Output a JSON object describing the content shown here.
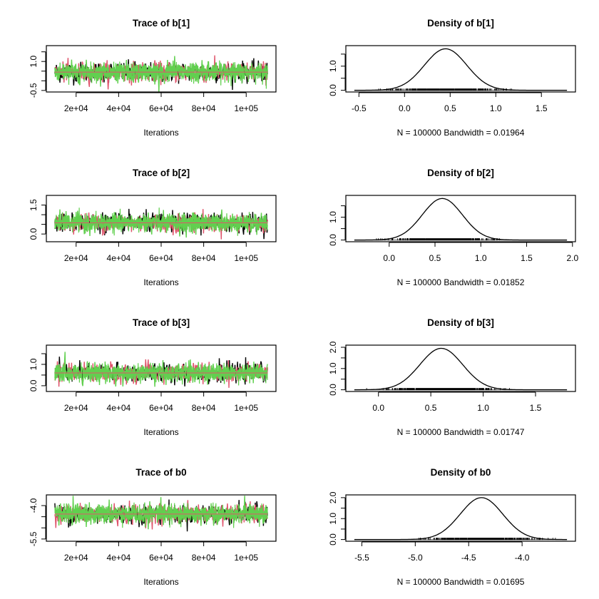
{
  "chain_colors": [
    "#000000",
    "#DF536B",
    "#61D04F"
  ],
  "chart_data": [
    {
      "type": "line",
      "kind": "trace",
      "title": "Trace of b[1]",
      "xlabel": "Iterations",
      "iterations": [
        10001,
        110000
      ],
      "ylim": [
        -0.58,
        1.82
      ],
      "mean": 0.45,
      "sd": 0.23,
      "xticks": [
        20000,
        40000,
        60000,
        80000,
        100000
      ],
      "xtick_labels": [
        "2e+04",
        "4e+04",
        "6e+04",
        "8e+04",
        "1e+05"
      ],
      "yticks": [
        -0.5,
        0,
        0.5,
        1,
        1.5
      ],
      "ytick_labels": [
        "-0.5",
        "",
        "",
        "1.0",
        ""
      ]
    },
    {
      "type": "line",
      "kind": "density",
      "title": "Density of b[1]",
      "xlabel": "N = 100000   Bandwidth = 0.01964",
      "xlim": [
        -0.55,
        1.78
      ],
      "ylim": [
        0,
        1.78
      ],
      "mode": 0.45,
      "peak": 1.72,
      "xticks": [
        -0.5,
        0,
        0.5,
        1,
        1.5
      ],
      "xtick_labels": [
        "-0.5",
        "0.0",
        "0.5",
        "1.0",
        "1.5"
      ],
      "yticks": [
        0,
        0.5,
        1,
        1.5
      ],
      "ytick_labels": [
        "0.0",
        "",
        "1.0",
        ""
      ]
    },
    {
      "type": "line",
      "kind": "trace",
      "title": "Trace of b[2]",
      "xlabel": "Iterations",
      "iterations": [
        10001,
        110000
      ],
      "ylim": [
        -0.4,
        2.0
      ],
      "mean": 0.58,
      "sd": 0.22,
      "xticks": [
        20000,
        40000,
        60000,
        80000,
        100000
      ],
      "xtick_labels": [
        "2e+04",
        "4e+04",
        "6e+04",
        "8e+04",
        "1e+05"
      ],
      "yticks": [
        0,
        0.5,
        1,
        1.5
      ],
      "ytick_labels": [
        "0.0",
        "",
        "",
        "1.5"
      ]
    },
    {
      "type": "line",
      "kind": "density",
      "title": "Density of b[2]",
      "xlabel": "N = 100000   Bandwidth = 0.01852",
      "xlim": [
        -0.38,
        1.94
      ],
      "ylim": [
        0,
        1.88
      ],
      "mode": 0.58,
      "peak": 1.82,
      "xticks": [
        0,
        0.5,
        1,
        1.5,
        2
      ],
      "xtick_labels": [
        "0.0",
        "0.5",
        "1.0",
        "1.5",
        "2.0"
      ],
      "yticks": [
        0,
        0.5,
        1,
        1.5
      ],
      "ytick_labels": [
        "0.0",
        "",
        "1.0",
        ""
      ]
    },
    {
      "type": "line",
      "kind": "trace",
      "title": "Trace of b[3]",
      "xlabel": "Iterations",
      "iterations": [
        10001,
        110000
      ],
      "ylim": [
        -0.27,
        1.9
      ],
      "mean": 0.6,
      "sd": 0.2,
      "xticks": [
        20000,
        40000,
        60000,
        80000,
        100000
      ],
      "xtick_labels": [
        "2e+04",
        "4e+04",
        "6e+04",
        "8e+04",
        "1e+05"
      ],
      "yticks": [
        0,
        0.5,
        1,
        1.5
      ],
      "ytick_labels": [
        "0.0",
        "",
        "1.0",
        ""
      ]
    },
    {
      "type": "line",
      "kind": "density",
      "title": "Density of b[3]",
      "xlabel": "N = 100000   Bandwidth = 0.01747",
      "xlim": [
        -0.23,
        1.8
      ],
      "ylim": [
        0,
        2.02
      ],
      "mode": 0.6,
      "peak": 1.95,
      "xticks": [
        0,
        0.5,
        1,
        1.5
      ],
      "xtick_labels": [
        "0.0",
        "0.5",
        "1.0",
        "1.5"
      ],
      "yticks": [
        0,
        0.5,
        1,
        1.5,
        2
      ],
      "ytick_labels": [
        "0.0",
        "",
        "1.0",
        "",
        "2.0"
      ]
    },
    {
      "type": "line",
      "kind": "trace",
      "title": "Trace of b0",
      "xlabel": "Iterations",
      "iterations": [
        10001,
        110000
      ],
      "ylim": [
        -5.6,
        -3.52
      ],
      "mean": -4.38,
      "sd": 0.2,
      "xticks": [
        20000,
        40000,
        60000,
        80000,
        100000
      ],
      "xtick_labels": [
        "2e+04",
        "4e+04",
        "6e+04",
        "8e+04",
        "1e+05"
      ],
      "yticks": [
        -5.5,
        -5,
        -4.5,
        -4
      ],
      "ytick_labels": [
        "-5.5",
        "",
        "",
        "-4.0"
      ]
    },
    {
      "type": "line",
      "kind": "density",
      "title": "Density of b0",
      "xlabel": "N = 100000   Bandwidth = 0.01695",
      "xlim": [
        -5.57,
        -3.58
      ],
      "ylim": [
        0,
        2.05
      ],
      "mode": -4.38,
      "peak": 2.0,
      "xticks": [
        -5.5,
        -5,
        -4.5,
        -4
      ],
      "xtick_labels": [
        "-5.5",
        "-5.0",
        "-4.5",
        "-4.0"
      ],
      "yticks": [
        0,
        0.5,
        1,
        1.5,
        2
      ],
      "ytick_labels": [
        "0.0",
        "",
        "1.0",
        "",
        "2.0"
      ]
    }
  ]
}
